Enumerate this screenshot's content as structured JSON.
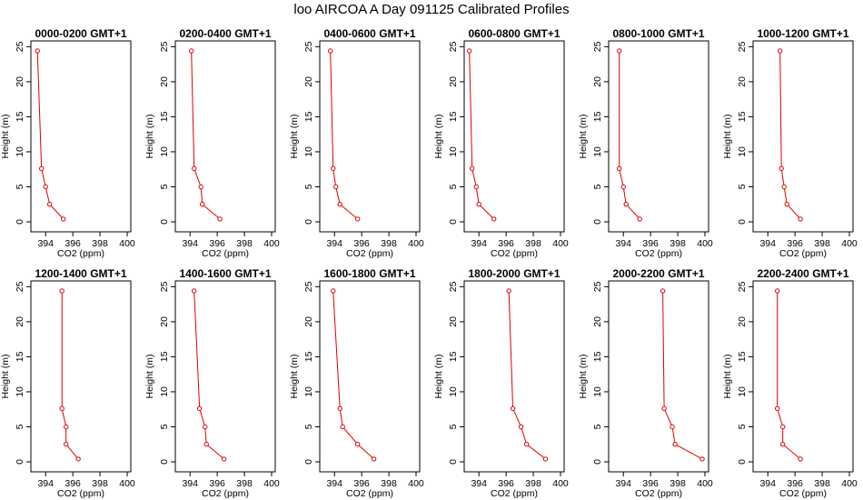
{
  "title": "loo AIRCOA A  Day 091125  Calibrated Profiles",
  "colors": {
    "profile": "#e00000",
    "axis": "#000000",
    "background": "#ffffff"
  },
  "chart_data": [
    {
      "type": "line",
      "title": "0000-0200 GMT+1",
      "xlabel": "CO2 (ppm)",
      "ylabel": "Height (m)",
      "xlim": [
        393,
        400
      ],
      "ylim": [
        -1,
        26
      ],
      "xticks": [
        394,
        396,
        398,
        400
      ],
      "yticks": [
        0,
        5,
        10,
        15,
        20,
        25
      ],
      "grid": false,
      "series": [
        {
          "x": [
            393.4,
            393.7,
            394.0,
            394.3,
            395.3
          ],
          "y": [
            24.4,
            7.6,
            5.0,
            2.5,
            0.4
          ]
        }
      ]
    },
    {
      "type": "line",
      "title": "0200-0400 GMT+1",
      "xlabel": "CO2 (ppm)",
      "ylabel": "Height (m)",
      "xlim": [
        393,
        400
      ],
      "ylim": [
        -1,
        26
      ],
      "xticks": [
        394,
        396,
        398,
        400
      ],
      "yticks": [
        0,
        5,
        10,
        15,
        20,
        25
      ],
      "grid": false,
      "series": [
        {
          "x": [
            394.1,
            394.3,
            394.8,
            394.9,
            396.2
          ],
          "y": [
            24.4,
            7.6,
            5.0,
            2.5,
            0.4
          ]
        }
      ]
    },
    {
      "type": "line",
      "title": "0400-0600 GMT+1",
      "xlabel": "CO2 (ppm)",
      "ylabel": "Height (m)",
      "xlim": [
        393,
        400
      ],
      "ylim": [
        -1,
        26
      ],
      "xticks": [
        394,
        396,
        398,
        400
      ],
      "yticks": [
        0,
        5,
        10,
        15,
        20,
        25
      ],
      "grid": false,
      "series": [
        {
          "x": [
            393.7,
            393.9,
            394.1,
            394.4,
            395.7
          ],
          "y": [
            24.4,
            7.6,
            5.0,
            2.5,
            0.4
          ]
        }
      ]
    },
    {
      "type": "line",
      "title": "0600-0800 GMT+1",
      "xlabel": "CO2 (ppm)",
      "ylabel": "Height (m)",
      "xlim": [
        393,
        400
      ],
      "ylim": [
        -1,
        26
      ],
      "xticks": [
        394,
        396,
        398,
        400
      ],
      "yticks": [
        0,
        5,
        10,
        15,
        20,
        25
      ],
      "grid": false,
      "series": [
        {
          "x": [
            393.3,
            393.5,
            393.8,
            394.0,
            395.1
          ],
          "y": [
            24.4,
            7.6,
            5.0,
            2.5,
            0.4
          ]
        }
      ]
    },
    {
      "type": "line",
      "title": "0800-1000 GMT+1",
      "xlabel": "CO2 (ppm)",
      "ylabel": "Height (m)",
      "xlim": [
        393,
        400
      ],
      "ylim": [
        -1,
        26
      ],
      "xticks": [
        394,
        396,
        398,
        400
      ],
      "yticks": [
        0,
        5,
        10,
        15,
        20,
        25
      ],
      "grid": false,
      "series": [
        {
          "x": [
            393.7,
            393.7,
            394.0,
            394.2,
            395.2
          ],
          "y": [
            24.4,
            7.6,
            5.0,
            2.5,
            0.4
          ]
        }
      ]
    },
    {
      "type": "line",
      "title": "1000-1200 GMT+1",
      "xlabel": "CO2 (ppm)",
      "ylabel": "Height (m)",
      "xlim": [
        393,
        400
      ],
      "ylim": [
        -1,
        26
      ],
      "xticks": [
        394,
        396,
        398,
        400
      ],
      "yticks": [
        0,
        5,
        10,
        15,
        20,
        25
      ],
      "grid": false,
      "series": [
        {
          "x": [
            394.9,
            395.0,
            395.2,
            395.4,
            396.4
          ],
          "y": [
            24.4,
            7.6,
            5.0,
            2.5,
            0.4
          ]
        }
      ]
    },
    {
      "type": "line",
      "title": "1200-1400 GMT+1",
      "xlabel": "CO2 (ppm)",
      "ylabel": "Height (m)",
      "xlim": [
        393,
        400
      ],
      "ylim": [
        -1,
        26
      ],
      "xticks": [
        394,
        396,
        398,
        400
      ],
      "yticks": [
        0,
        5,
        10,
        15,
        20,
        25
      ],
      "grid": false,
      "series": [
        {
          "x": [
            395.2,
            395.2,
            395.5,
            395.5,
            396.4
          ],
          "y": [
            24.4,
            7.6,
            5.0,
            2.5,
            0.4
          ]
        }
      ]
    },
    {
      "type": "line",
      "title": "1400-1600 GMT+1",
      "xlabel": "CO2 (ppm)",
      "ylabel": "Height (m)",
      "xlim": [
        393,
        400
      ],
      "ylim": [
        -1,
        26
      ],
      "xticks": [
        394,
        396,
        398,
        400
      ],
      "yticks": [
        0,
        5,
        10,
        15,
        20,
        25
      ],
      "grid": false,
      "series": [
        {
          "x": [
            394.3,
            394.7,
            395.1,
            395.2,
            396.5
          ],
          "y": [
            24.4,
            7.6,
            5.0,
            2.5,
            0.4
          ]
        }
      ]
    },
    {
      "type": "line",
      "title": "1600-1800 GMT+1",
      "xlabel": "CO2 (ppm)",
      "ylabel": "Height (m)",
      "xlim": [
        393,
        400
      ],
      "ylim": [
        -1,
        26
      ],
      "xticks": [
        394,
        396,
        398,
        400
      ],
      "yticks": [
        0,
        5,
        10,
        15,
        20,
        25
      ],
      "grid": false,
      "series": [
        {
          "x": [
            393.9,
            394.4,
            394.6,
            395.7,
            396.9
          ],
          "y": [
            24.4,
            7.6,
            5.0,
            2.5,
            0.4
          ]
        }
      ]
    },
    {
      "type": "line",
      "title": "1800-2000 GMT+1",
      "xlabel": "CO2 (ppm)",
      "ylabel": "Height (m)",
      "xlim": [
        393,
        400
      ],
      "ylim": [
        -1,
        26
      ],
      "xticks": [
        394,
        396,
        398,
        400
      ],
      "yticks": [
        0,
        5,
        10,
        15,
        20,
        25
      ],
      "grid": false,
      "series": [
        {
          "x": [
            396.2,
            396.5,
            397.1,
            397.5,
            398.9
          ],
          "y": [
            24.4,
            7.6,
            5.0,
            2.5,
            0.4
          ]
        }
      ]
    },
    {
      "type": "line",
      "title": "2000-2200 GMT+1",
      "xlabel": "CO2 (ppm)",
      "ylabel": "Height (m)",
      "xlim": [
        393,
        400
      ],
      "ylim": [
        -1,
        26
      ],
      "xticks": [
        394,
        396,
        398,
        400
      ],
      "yticks": [
        0,
        5,
        10,
        15,
        20,
        25
      ],
      "grid": false,
      "series": [
        {
          "x": [
            396.9,
            397.0,
            397.6,
            397.8,
            399.8
          ],
          "y": [
            24.4,
            7.6,
            5.0,
            2.5,
            0.4
          ]
        }
      ]
    },
    {
      "type": "line",
      "title": "2200-2400 GMT+1",
      "xlabel": "CO2 (ppm)",
      "ylabel": "Height (m)",
      "xlim": [
        393,
        400
      ],
      "ylim": [
        -1,
        26
      ],
      "xticks": [
        394,
        396,
        398,
        400
      ],
      "yticks": [
        0,
        5,
        10,
        15,
        20,
        25
      ],
      "grid": false,
      "series": [
        {
          "x": [
            394.7,
            394.7,
            395.1,
            395.1,
            396.4
          ],
          "y": [
            24.4,
            7.6,
            5.0,
            2.5,
            0.4
          ]
        }
      ]
    }
  ]
}
